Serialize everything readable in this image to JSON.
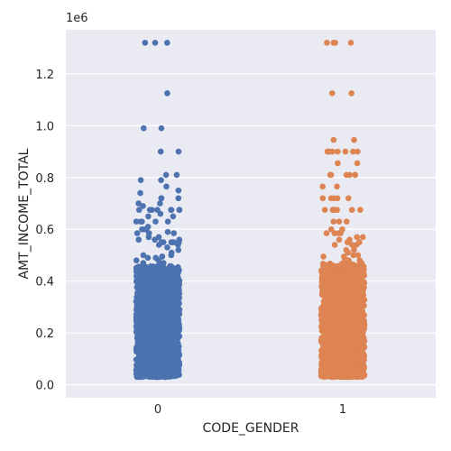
{
  "chart_data": {
    "type": "scatter",
    "subtype": "strip",
    "xlabel": "CODE_GENDER",
    "ylabel": "AMT_INCOME_TOTAL",
    "offset_label": "1e6",
    "categories": [
      "0",
      "1"
    ],
    "ylim": [
      -0.05,
      1.37
    ],
    "y_scale_factor": 1000000,
    "y_ticks": [
      0.0,
      0.2,
      0.4,
      0.6,
      0.8,
      1.0,
      1.2
    ],
    "y_tick_labels": [
      "0.0",
      "0.2",
      "0.4",
      "0.6",
      "0.8",
      "1.0",
      "1.2"
    ],
    "grid": true,
    "background": "#eaeaf2",
    "series": [
      {
        "category": "0",
        "color": "#4c72b0",
        "dense_range": [
          0.03,
          0.46
        ],
        "values": [
          1.32,
          1.32,
          1.32,
          1.125,
          0.99,
          0.99,
          0.9,
          0.9,
          0.81,
          0.81,
          0.79,
          0.79,
          0.765,
          0.75,
          0.74,
          0.72,
          0.72,
          0.72,
          0.7,
          0.7,
          0.69,
          0.675,
          0.675,
          0.675,
          0.675,
          0.675,
          0.675,
          0.675,
          0.675,
          0.66,
          0.65,
          0.65,
          0.63,
          0.63,
          0.63,
          0.63,
          0.63,
          0.61,
          0.6,
          0.6,
          0.6,
          0.59,
          0.585,
          0.585,
          0.585,
          0.57,
          0.57,
          0.56,
          0.56,
          0.56,
          0.55,
          0.55,
          0.55,
          0.55,
          0.55,
          0.55,
          0.54,
          0.54,
          0.53,
          0.52,
          0.51,
          0.5,
          0.5,
          0.495,
          0.495,
          0.49,
          0.49,
          0.48,
          0.48,
          0.47,
          0.47,
          0.47
        ]
      },
      {
        "category": "1",
        "color": "#dd8452",
        "dense_range": [
          0.03,
          0.47
        ],
        "values": [
          1.32,
          1.32,
          1.32,
          1.32,
          1.125,
          1.125,
          0.945,
          0.945,
          0.9,
          0.9,
          0.9,
          0.9,
          0.9,
          0.9,
          0.9,
          0.9,
          0.855,
          0.855,
          0.81,
          0.81,
          0.81,
          0.81,
          0.81,
          0.81,
          0.765,
          0.765,
          0.72,
          0.72,
          0.72,
          0.72,
          0.72,
          0.675,
          0.675,
          0.675,
          0.675,
          0.675,
          0.675,
          0.675,
          0.675,
          0.63,
          0.63,
          0.63,
          0.6,
          0.6,
          0.585,
          0.585,
          0.585,
          0.585,
          0.57,
          0.57,
          0.56,
          0.56,
          0.55,
          0.55,
          0.54,
          0.54,
          0.54,
          0.52,
          0.52,
          0.51,
          0.5,
          0.5,
          0.495,
          0.495,
          0.49,
          0.48,
          0.48
        ]
      }
    ]
  }
}
